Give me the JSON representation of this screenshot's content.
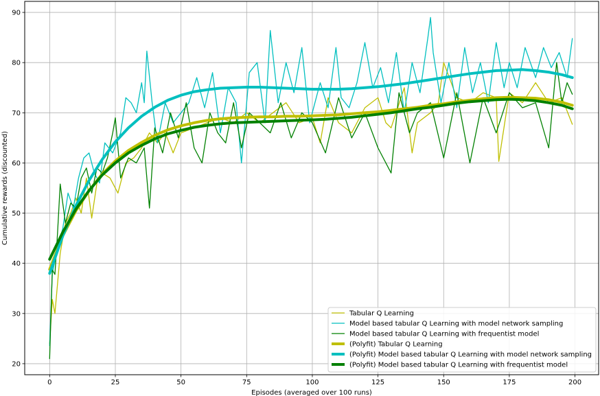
{
  "chart_data": {
    "type": "line",
    "title": "",
    "xlabel": "Episodes (averaged over 100 runs)",
    "ylabel": "Cumulative rewards (discounted)",
    "xlim": [
      -9.5,
      209
    ],
    "ylim": [
      17.8,
      92.2
    ],
    "xticks": [
      0,
      25,
      50,
      75,
      100,
      125,
      150,
      175,
      200
    ],
    "yticks": [
      20,
      30,
      40,
      50,
      60,
      70,
      80,
      90
    ],
    "grid": true,
    "legend_position": "lower-right",
    "colors": {
      "tabular": "#bfbf00",
      "network": "#00bfbf",
      "frequentist": "#008000"
    },
    "series": [
      {
        "name": "Tabular Q Learning",
        "style": "thin",
        "color": "#bfbf00",
        "x": [
          0,
          1,
          2,
          4,
          6,
          8,
          10,
          12,
          14,
          16,
          18,
          20,
          23,
          26,
          29,
          32,
          35,
          38,
          41,
          44,
          47,
          50,
          55,
          60,
          65,
          70,
          75,
          80,
          85,
          90,
          95,
          100,
          103,
          106,
          110,
          115,
          120,
          125,
          128,
          130,
          135,
          138,
          140,
          145,
          148,
          150,
          155,
          160,
          165,
          170,
          171,
          175,
          180,
          185,
          190,
          195,
          199
        ],
        "values": [
          24,
          32.8,
          30,
          42,
          48,
          50,
          53,
          50,
          57,
          49,
          56,
          58,
          57,
          54,
          60,
          61,
          63,
          66,
          64,
          66,
          62,
          66,
          67,
          68,
          69,
          68,
          70,
          68,
          70,
          72,
          68,
          69,
          64,
          73,
          68,
          66,
          71,
          73,
          68,
          67,
          75,
          62,
          68,
          70,
          72,
          80,
          73,
          72,
          74,
          73,
          60.3,
          74,
          72,
          76,
          72,
          73,
          67.7
        ]
      },
      {
        "name": "Model based tabular Q Learning with model network sampling",
        "style": "thin",
        "color": "#00bfbf",
        "x": [
          0,
          1,
          3,
          5,
          7,
          9,
          11,
          13,
          15,
          17,
          19,
          21,
          24,
          27,
          29,
          31,
          33,
          35,
          36,
          37,
          39,
          41,
          44,
          47,
          50,
          53,
          56,
          59,
          62,
          65,
          68,
          71,
          73,
          76,
          79,
          82,
          84,
          87,
          90,
          93,
          96,
          99,
          103,
          106,
          109,
          111,
          114,
          117,
          120,
          123,
          126,
          129,
          132,
          135,
          138,
          141,
          144,
          145,
          146,
          149,
          152,
          155,
          158,
          161,
          164,
          167,
          170,
          173,
          175,
          178,
          181,
          185,
          188,
          191,
          194,
          197,
          199
        ],
        "values": [
          23.6,
          38,
          43,
          47,
          54,
          51,
          57,
          61,
          62,
          58,
          56,
          64,
          62,
          66,
          73,
          72,
          70,
          76,
          72,
          82.3,
          72,
          64,
          72,
          68,
          70,
          72,
          77,
          71,
          78,
          66,
          75,
          72,
          60,
          78,
          80,
          68,
          86.4,
          72,
          80,
          74,
          83,
          68,
          76,
          71,
          83,
          73,
          71,
          76,
          84,
          75,
          79,
          72,
          82,
          70,
          80,
          74,
          85,
          89,
          82,
          72,
          80,
          71,
          83,
          74,
          80,
          72,
          84,
          75,
          80,
          75,
          83,
          77,
          83,
          79,
          82,
          77,
          84.8
        ]
      },
      {
        "name": "Model based tabular Q Learning with frequentist model",
        "style": "thin",
        "color": "#008000",
        "x": [
          0,
          1,
          2,
          3,
          4,
          6,
          8,
          10,
          12,
          14,
          16,
          18,
          20,
          22,
          24,
          25,
          27,
          30,
          33,
          36,
          38,
          40,
          43,
          46,
          49,
          52,
          55,
          58,
          61,
          64,
          67,
          70,
          73,
          76,
          80,
          84,
          88,
          92,
          96,
          100,
          105,
          110,
          115,
          120,
          125,
          130,
          133,
          137,
          140,
          145,
          150,
          155,
          160,
          165,
          170,
          175,
          180,
          185,
          190,
          193,
          195,
          197,
          199
        ],
        "values": [
          21,
          38.7,
          37.8,
          46,
          55.8,
          48,
          52,
          51,
          57,
          59,
          54,
          59,
          58,
          61,
          66,
          69,
          57,
          61,
          60,
          63,
          51,
          67,
          62,
          70,
          65,
          72,
          63,
          60,
          70,
          66,
          64,
          72,
          63,
          70,
          68,
          66,
          72,
          65,
          70,
          68,
          62,
          73,
          65,
          70,
          63,
          58,
          74,
          66,
          70,
          72,
          61,
          74,
          60,
          73,
          66,
          74,
          71,
          72,
          63,
          80,
          72,
          76,
          73.7
        ]
      },
      {
        "name": "(Polyfit) Tabular Q Learning",
        "style": "thick",
        "color": "#bfbf00",
        "x": [
          0,
          5,
          10,
          15,
          20,
          25,
          30,
          35,
          40,
          45,
          50,
          55,
          60,
          65,
          70,
          75,
          80,
          85,
          90,
          95,
          100,
          105,
          110,
          115,
          120,
          125,
          130,
          135,
          140,
          145,
          150,
          155,
          160,
          165,
          170,
          175,
          180,
          185,
          190,
          195,
          199
        ],
        "values": [
          38.8,
          45.5,
          50.5,
          54.5,
          57.8,
          60.4,
          62.5,
          64.1,
          65.5,
          66.6,
          67.4,
          68,
          68.5,
          68.8,
          69,
          69.1,
          69.2,
          69.2,
          69.3,
          69.3,
          69.4,
          69.5,
          69.6,
          69.8,
          70,
          70.2,
          70.5,
          70.8,
          71.1,
          71.5,
          71.8,
          72.2,
          72.5,
          72.8,
          73,
          73.1,
          73,
          72.9,
          72.6,
          72.1,
          71.5
        ]
      },
      {
        "name": "(Polyfit) Model based tabular Q Learning with model network sampling",
        "style": "thick",
        "color": "#00bfbf",
        "x": [
          0,
          5,
          10,
          15,
          20,
          25,
          30,
          35,
          40,
          45,
          50,
          55,
          60,
          65,
          70,
          75,
          80,
          85,
          90,
          95,
          100,
          105,
          110,
          115,
          120,
          125,
          130,
          135,
          140,
          145,
          150,
          155,
          160,
          165,
          170,
          175,
          180,
          185,
          190,
          195,
          199
        ],
        "values": [
          38,
          45.5,
          51.5,
          56.5,
          60.7,
          64.2,
          67,
          69.3,
          71.1,
          72.5,
          73.5,
          74.2,
          74.6,
          74.9,
          75,
          75.1,
          75.1,
          75,
          74.9,
          74.8,
          74.7,
          74.7,
          74.7,
          74.8,
          75,
          75.2,
          75.5,
          75.8,
          76.2,
          76.6,
          77,
          77.4,
          77.8,
          78.1,
          78.4,
          78.5,
          78.6,
          78.4,
          78.1,
          77.6,
          77
        ]
      },
      {
        "name": "(Polyfit) Model based tabular Q Learning with frequentist model",
        "style": "thick",
        "color": "#008000",
        "x": [
          0,
          5,
          10,
          15,
          20,
          25,
          30,
          35,
          40,
          45,
          50,
          55,
          60,
          65,
          70,
          75,
          80,
          85,
          90,
          95,
          100,
          105,
          110,
          115,
          120,
          125,
          130,
          135,
          140,
          145,
          150,
          155,
          160,
          165,
          170,
          175,
          180,
          185,
          190,
          195,
          199
        ],
        "values": [
          40.8,
          46.2,
          50.8,
          54.5,
          57.6,
          60,
          62,
          63.5,
          64.8,
          65.8,
          66.5,
          67.1,
          67.5,
          67.8,
          68,
          68.1,
          68.2,
          68.3,
          68.4,
          68.5,
          68.6,
          68.7,
          68.9,
          69.1,
          69.4,
          69.7,
          70,
          70.4,
          70.8,
          71.1,
          71.5,
          71.9,
          72.2,
          72.4,
          72.6,
          72.7,
          72.6,
          72.4,
          72,
          71.5,
          70.8
        ]
      }
    ]
  }
}
